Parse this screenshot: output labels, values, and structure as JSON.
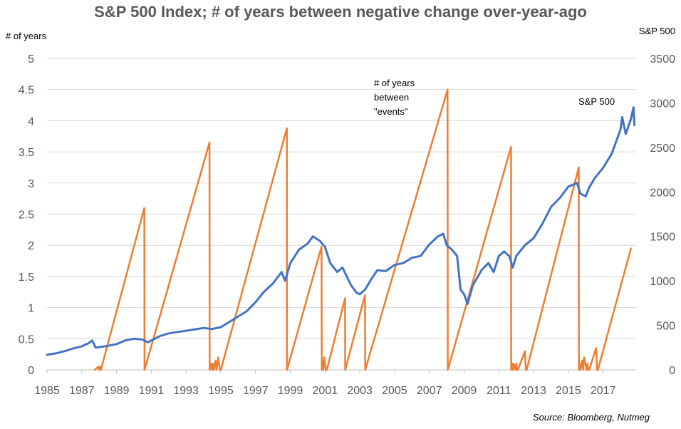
{
  "chart_data": {
    "type": "line",
    "title": "S&P 500 Index; # of years between negative change over-year-ago",
    "y_left_label": "# of years",
    "y_right_label": "S&P 500",
    "source": "Source:  Bloomberg, Nutmeg",
    "x_ticks": [
      "1985",
      "1987",
      "1989",
      "1991",
      "1993",
      "1995",
      "1997",
      "1999",
      "2001",
      "2003",
      "2005",
      "2007",
      "2009",
      "2011",
      "2013",
      "2015",
      "2017"
    ],
    "y_left_ticks": [
      "0",
      "0.5",
      "1",
      "1.5",
      "2",
      "2.5",
      "3",
      "3.5",
      "4",
      "4.5",
      "5"
    ],
    "y_right_ticks": [
      "0",
      "500",
      "1000",
      "1500",
      "2000",
      "2500",
      "3000",
      "3500"
    ],
    "xlim": [
      1985,
      2018.9
    ],
    "ylim_left": [
      0,
      5
    ],
    "ylim_right": [
      0,
      3500
    ],
    "grid": true,
    "annotations": {
      "years_label": [
        "# of years",
        "between",
        "\"events\""
      ],
      "sp_label": "S&P 500"
    },
    "colors": {
      "sp500": "#4472C4",
      "years": "#ED7D31",
      "grid": "#D9D9D9",
      "axis": "#BFBFBF"
    },
    "series": [
      {
        "name": "# of years between \"events\"",
        "axis": "left",
        "x": [
          1987.75,
          1987.95,
          1988.0,
          1988.05,
          1988.1,
          1990.6,
          1990.61,
          1994.35,
          1994.36,
          1994.45,
          1994.5,
          1994.55,
          1994.6,
          1994.7,
          1994.75,
          1994.8,
          1994.85,
          1994.95,
          1995.0,
          1998.8,
          1998.81,
          2000.8,
          2000.81,
          2000.85,
          2000.9,
          2000.95,
          2001.05,
          2001.1,
          2002.15,
          2002.16,
          2003.3,
          2003.31,
          2008.05,
          2008.06,
          2011.7,
          2011.71,
          2011.75,
          2011.8,
          2011.85,
          2011.95,
          2012.0,
          2012.05,
          2012.1,
          2012.5,
          2012.55,
          2012.6,
          2015.6,
          2015.61,
          2015.65,
          2015.7,
          2015.8,
          2015.85,
          2015.9,
          2016.05,
          2016.1,
          2016.15,
          2016.2,
          2016.6,
          2016.65,
          2016.7,
          2018.6
        ],
        "values": [
          0,
          0.05,
          0,
          0.05,
          0,
          2.6,
          0,
          3.65,
          0,
          0.1,
          0,
          0.1,
          0,
          0.15,
          0,
          0.1,
          0.2,
          0,
          0,
          3.88,
          0,
          1.98,
          0,
          0.15,
          0,
          0.2,
          0,
          0,
          1.15,
          0,
          1.2,
          0,
          4.5,
          0,
          3.58,
          0,
          0.1,
          0,
          0.1,
          0,
          0.1,
          0,
          0,
          0.3,
          0,
          0,
          3.25,
          0,
          0.1,
          0,
          0.15,
          0,
          0.2,
          0,
          0.1,
          0,
          0,
          0.35,
          0,
          0,
          1.95
        ]
      },
      {
        "name": "S&P 500",
        "axis": "right",
        "x": [
          1985.0,
          1985.5,
          1986.0,
          1986.5,
          1987.0,
          1987.4,
          1987.6,
          1987.8,
          1988.5,
          1989.0,
          1989.5,
          1990.0,
          1990.5,
          1990.8,
          1991.0,
          1991.5,
          1992.0,
          1993.0,
          1994.0,
          1994.5,
          1995.0,
          1995.5,
          1996.0,
          1996.5,
          1997.0,
          1997.5,
          1998.0,
          1998.5,
          1998.7,
          1999.0,
          1999.5,
          2000.0,
          2000.3,
          2000.7,
          2001.0,
          2001.3,
          2001.7,
          2002.0,
          2002.5,
          2002.8,
          2003.0,
          2003.3,
          2003.6,
          2004.0,
          2004.5,
          2005.0,
          2005.5,
          2006.0,
          2006.5,
          2007.0,
          2007.5,
          2007.8,
          2008.0,
          2008.3,
          2008.6,
          2008.8,
          2009.0,
          2009.2,
          2009.5,
          2010.0,
          2010.4,
          2010.7,
          2011.0,
          2011.3,
          2011.6,
          2011.8,
          2012.0,
          2012.5,
          2013.0,
          2013.5,
          2014.0,
          2014.5,
          2015.0,
          2015.5,
          2015.7,
          2016.0,
          2016.2,
          2016.5,
          2017.0,
          2017.5,
          2018.0,
          2018.1,
          2018.3,
          2018.6,
          2018.75,
          2018.8
        ],
        "values": [
          170,
          185,
          210,
          240,
          265,
          300,
          330,
          250,
          270,
          290,
          330,
          350,
          340,
          310,
          330,
          380,
          410,
          440,
          470,
          460,
          480,
          540,
          600,
          660,
          760,
          880,
          970,
          1100,
          1000,
          1200,
          1350,
          1420,
          1500,
          1450,
          1380,
          1200,
          1100,
          1150,
          950,
          870,
          850,
          900,
          1000,
          1120,
          1110,
          1180,
          1200,
          1260,
          1280,
          1410,
          1500,
          1530,
          1400,
          1350,
          1280,
          900,
          850,
          740,
          950,
          1120,
          1200,
          1100,
          1280,
          1330,
          1280,
          1150,
          1280,
          1400,
          1480,
          1640,
          1830,
          1930,
          2060,
          2100,
          1980,
          1950,
          2050,
          2150,
          2270,
          2430,
          2700,
          2840,
          2650,
          2820,
          2950,
          2750
        ]
      }
    ]
  }
}
